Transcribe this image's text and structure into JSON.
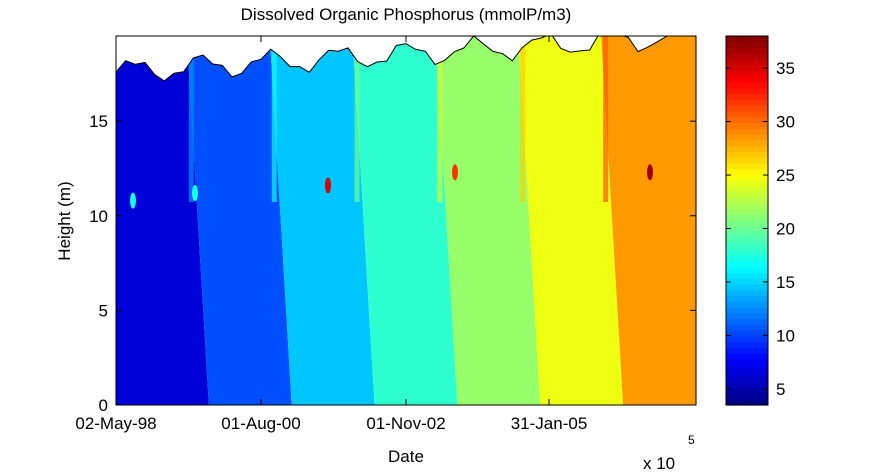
{
  "chart_data": {
    "type": "heatmap",
    "title": "Dissolved Organic Phosphorus (mmolP/m3)",
    "xlabel": "Date",
    "ylabel": "Height (m)",
    "x_tick_labels": [
      "02-May-98",
      "01-Aug-00",
      "01-Nov-02",
      "31-Jan-05"
    ],
    "x_exponent_label": "x 10",
    "x_exponent_power": "5",
    "y_ticks": [
      0,
      5,
      10,
      15
    ],
    "ylim": [
      0,
      19.5
    ],
    "colorbar": {
      "colormap": "jet",
      "range": [
        3.5,
        38
      ],
      "ticks": [
        5,
        10,
        15,
        20,
        25,
        30,
        35
      ]
    },
    "bands": [
      {
        "value": 6.5
      },
      {
        "value": 10.5
      },
      {
        "value": 14.5
      },
      {
        "value": 18
      },
      {
        "value": 21.5
      },
      {
        "value": 24.5
      },
      {
        "value": 28.5
      }
    ],
    "hotspots": [
      {
        "height": 10.8,
        "value": 17
      },
      {
        "height": 11.2,
        "value": 17
      },
      {
        "height": 11.6,
        "value": 35
      },
      {
        "height": 12.3,
        "value": 32
      },
      {
        "height": 12.3,
        "value": 37
      }
    ],
    "water_surface_height_range": [
      17.6,
      19.5
    ]
  }
}
